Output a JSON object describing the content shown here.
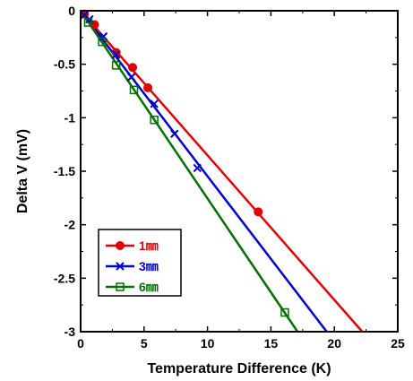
{
  "chart_data": {
    "type": "line",
    "xlabel": "Temperature Difference (K)",
    "ylabel": "Delta V (mV)",
    "xlim": [
      0,
      25
    ],
    "ylim": [
      -3,
      0
    ],
    "x_ticks": [
      0,
      5,
      10,
      15,
      20,
      25
    ],
    "y_ticks": [
      0,
      -0.5,
      -1,
      -1.5,
      -2,
      -2.5,
      -3
    ],
    "x_tick_labels": [
      "0",
      "5",
      "10",
      "15",
      "20",
      "25"
    ],
    "y_tick_labels": [
      "0",
      "-0.5",
      "-1",
      "-1.5",
      "-2",
      "-2.5",
      "-3"
    ],
    "grid": false,
    "legend_position": "bottom-left",
    "series": [
      {
        "name": "1㎜",
        "color": "#e00000",
        "marker": "filled-circle",
        "points": [
          [
            0.3,
            -0.03
          ],
          [
            1.1,
            -0.13
          ],
          [
            2.8,
            -0.39
          ],
          [
            4.1,
            -0.53
          ],
          [
            5.3,
            -0.72
          ],
          [
            14.0,
            -1.88
          ]
        ],
        "fit": [
          [
            0,
            0.0
          ],
          [
            22.2,
            -3.0
          ]
        ]
      },
      {
        "name": "3㎜",
        "color": "#0000cc",
        "marker": "x",
        "points": [
          [
            0.3,
            -0.04
          ],
          [
            0.7,
            -0.08
          ],
          [
            1.8,
            -0.24
          ],
          [
            2.8,
            -0.41
          ],
          [
            4.0,
            -0.62
          ],
          [
            5.8,
            -0.87
          ],
          [
            7.4,
            -1.15
          ],
          [
            9.2,
            -1.47
          ]
        ],
        "fit": [
          [
            0,
            0.0
          ],
          [
            19.4,
            -3.0
          ]
        ]
      },
      {
        "name": "6㎜",
        "color": "#007000",
        "marker": "open-square",
        "points": [
          [
            0.6,
            -0.11
          ],
          [
            1.7,
            -0.29
          ],
          [
            2.8,
            -0.51
          ],
          [
            4.2,
            -0.74
          ],
          [
            5.8,
            -1.02
          ],
          [
            16.1,
            -2.82
          ]
        ],
        "fit": [
          [
            0,
            0.0
          ],
          [
            17.1,
            -3.0
          ]
        ]
      }
    ]
  }
}
